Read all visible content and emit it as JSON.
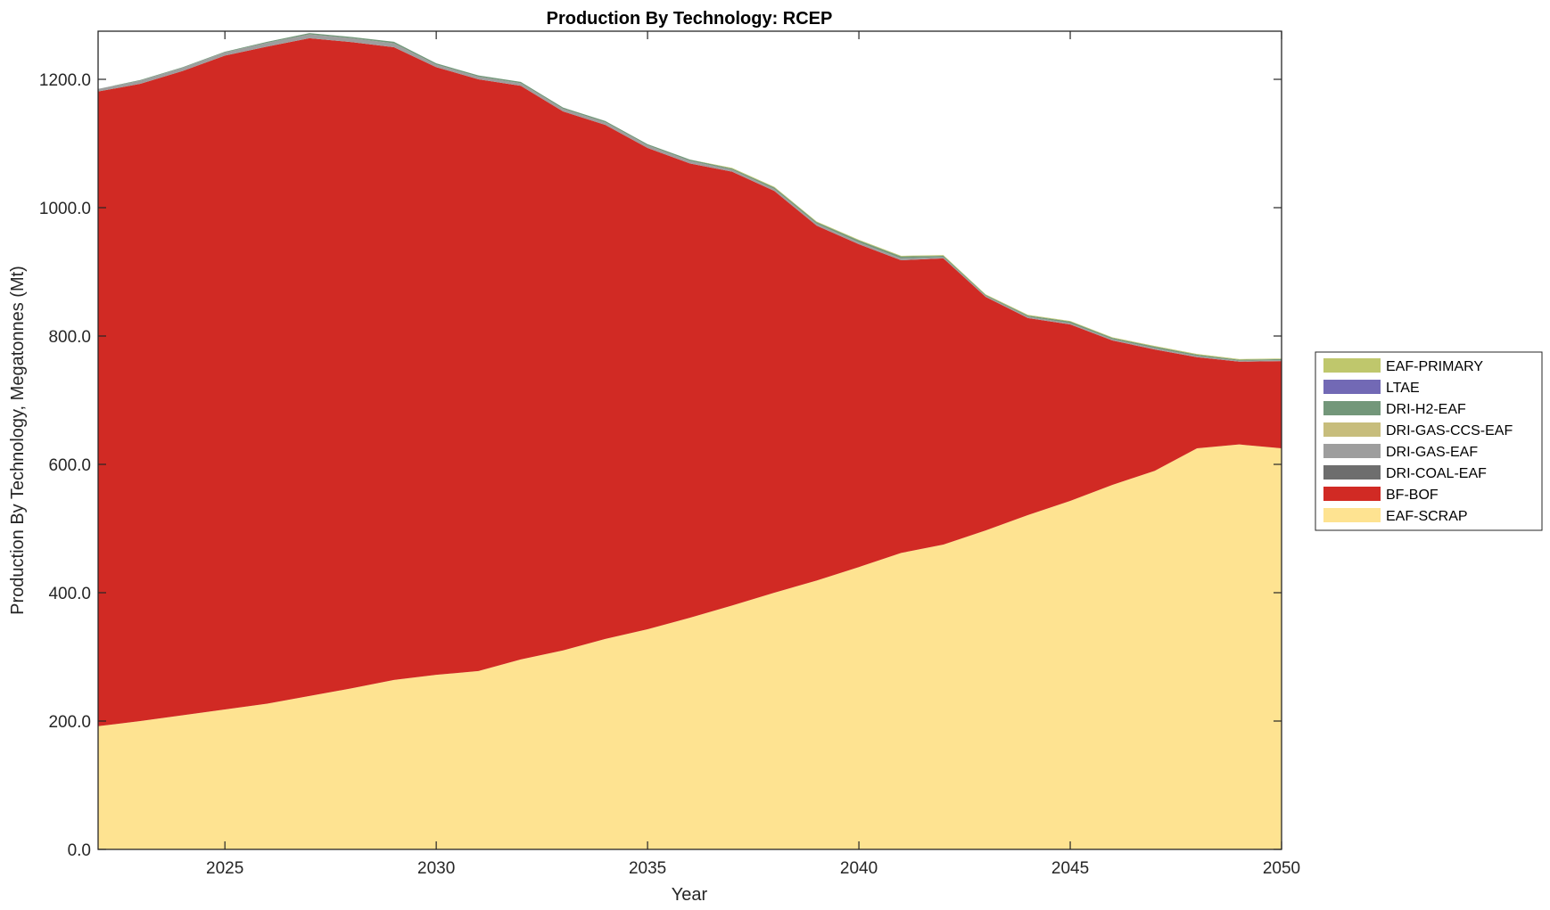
{
  "chart_data": {
    "type": "area",
    "stacked": true,
    "title": "Production By Technology: RCEP",
    "xlabel": "Year",
    "ylabel": "Production By Technology, Megatonnes (Mt)",
    "xlim": [
      2022,
      2050
    ],
    "ylim": [
      0,
      1275
    ],
    "x_ticks": [
      2025,
      2030,
      2035,
      2040,
      2045,
      2050
    ],
    "x_tick_labels": [
      "2025",
      "2030",
      "2035",
      "2040",
      "2045",
      "2050"
    ],
    "y_ticks": [
      0,
      200,
      400,
      600,
      800,
      1000,
      1200
    ],
    "y_tick_labels": [
      "0.0",
      "200.0",
      "400.0",
      "600.0",
      "800.0",
      "1000.0",
      "1200.0"
    ],
    "grid": false,
    "legend_placement": "outside-right",
    "x": [
      2022,
      2023,
      2024,
      2025,
      2026,
      2027,
      2028,
      2029,
      2030,
      2031,
      2032,
      2033,
      2034,
      2035,
      2036,
      2037,
      2038,
      2039,
      2040,
      2041,
      2042,
      2043,
      2044,
      2045,
      2046,
      2047,
      2048,
      2049,
      2050
    ],
    "series": [
      {
        "name": "EAF-SCRAP",
        "color": "#FEE391",
        "values": [
          192,
          200,
          209,
          218,
          227,
          239,
          251,
          264,
          272,
          278,
          296,
          310,
          328,
          343,
          361,
          380,
          400,
          419,
          440,
          462,
          475,
          497,
          521,
          543,
          568,
          590,
          625,
          631,
          625
        ]
      },
      {
        "name": "BF-BOF",
        "color": "#D12A24",
        "values": [
          989,
          993,
          1004,
          1019,
          1024,
          1025,
          1007,
          986,
          947,
          922,
          894,
          840,
          801,
          750,
          708,
          676,
          626,
          553,
          503,
          456,
          446,
          364,
          307,
          275,
          225,
          189,
          142,
          129,
          136
        ]
      },
      {
        "name": "DRI-COAL-EAF",
        "color": "#6E6E6E",
        "values": [
          0,
          0,
          0,
          0,
          0,
          0,
          0,
          0,
          0,
          0,
          0,
          0,
          0,
          0,
          0,
          0,
          0,
          0,
          0,
          0,
          0,
          0,
          0,
          0,
          0,
          0,
          0,
          0,
          0
        ]
      },
      {
        "name": "DRI-GAS-EAF",
        "color": "#9E9E9E",
        "values": [
          4,
          5,
          5,
          5,
          6,
          6,
          6,
          6,
          4,
          4,
          4,
          4,
          4,
          4,
          4,
          3,
          3,
          3,
          3,
          3,
          2,
          1.5,
          2,
          2,
          2,
          2,
          2,
          1.5,
          1.5
        ]
      },
      {
        "name": "DRI-GAS-CCS-EAF",
        "color": "#C7BD7C",
        "values": [
          0,
          0,
          0,
          0,
          0,
          0,
          0,
          0,
          0,
          0,
          0,
          0,
          0,
          0,
          0,
          0,
          0,
          0,
          0,
          0,
          0,
          0,
          0,
          0,
          0,
          0,
          0,
          0,
          0
        ]
      },
      {
        "name": "DRI-H2-EAF",
        "color": "#73977A",
        "values": [
          0,
          1,
          1,
          1,
          1.5,
          2,
          2,
          2.5,
          2,
          2,
          2,
          2,
          2,
          2,
          2,
          2,
          2.5,
          2.5,
          3,
          3,
          2,
          1.5,
          2,
          2.5,
          2,
          2.5,
          2,
          1.5,
          1.5
        ]
      },
      {
        "name": "LTAE",
        "color": "#7269B5",
        "values": [
          0,
          0,
          0,
          0,
          0,
          0,
          0,
          0,
          0,
          0,
          0,
          0,
          0,
          0,
          0,
          0,
          0,
          0,
          0,
          0,
          0,
          0,
          0,
          0,
          0,
          0,
          0,
          0,
          0
        ]
      },
      {
        "name": "EAF-PRIMARY",
        "color": "#BFC76C",
        "values": [
          0,
          0,
          0,
          0,
          0,
          0,
          0,
          0,
          0,
          0,
          0,
          0,
          0,
          0,
          0,
          1,
          1,
          1,
          1,
          1,
          1,
          1,
          1,
          1,
          1,
          1,
          1,
          1,
          1
        ]
      }
    ],
    "legend_order": [
      "EAF-PRIMARY",
      "LTAE",
      "DRI-H2-EAF",
      "DRI-GAS-CCS-EAF",
      "DRI-GAS-EAF",
      "DRI-COAL-EAF",
      "BF-BOF",
      "EAF-SCRAP"
    ]
  }
}
